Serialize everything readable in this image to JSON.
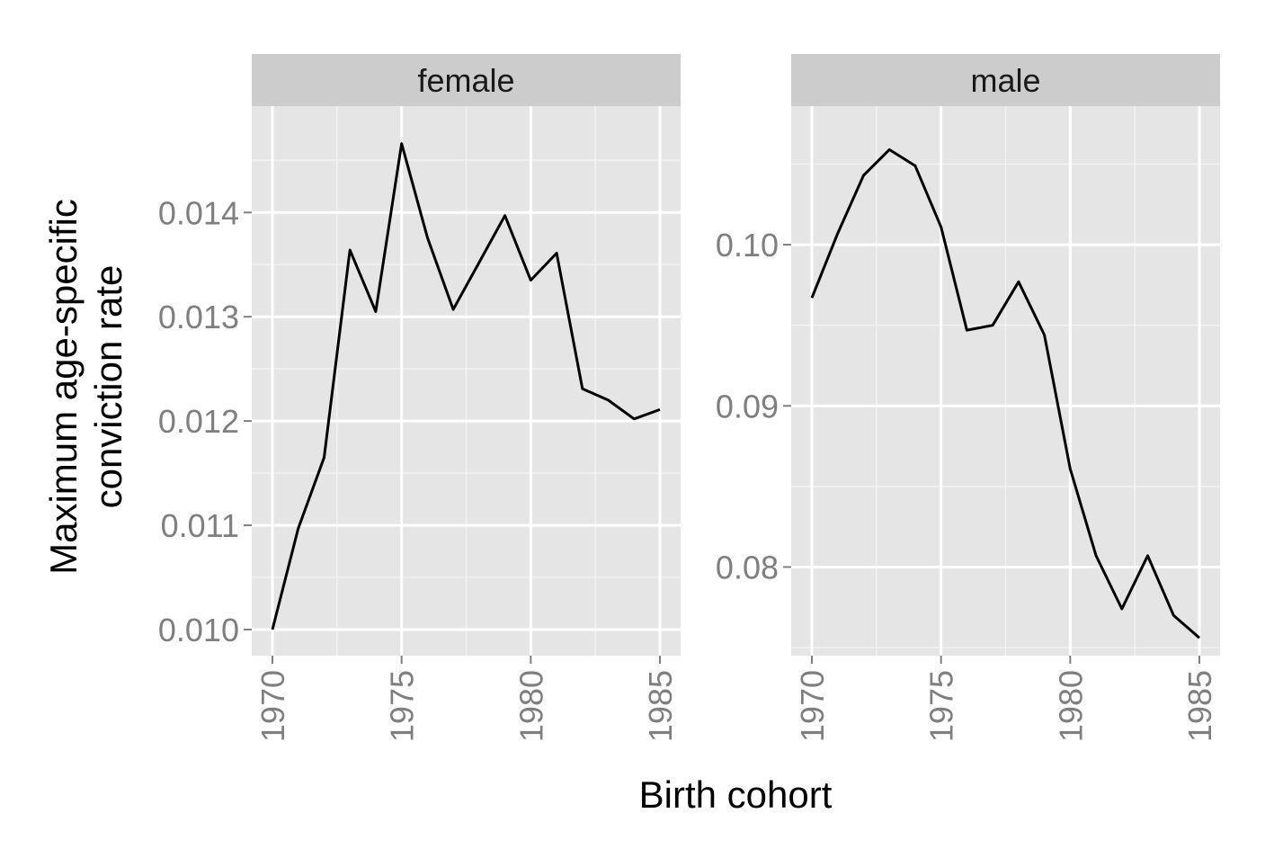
{
  "chart_data": {
    "type": "line",
    "facet_layout": "two panels side by side, independent y scales",
    "xlabel": "Birth cohort",
    "ylabel_line1": "Maximum age-specific",
    "ylabel_line2": "conviction rate",
    "grid": true,
    "colors": {
      "panel_background": "#e5e5e5",
      "strip_background": "#cccccc",
      "grid_line": "#ffffff",
      "series_line": "#000000",
      "tick_text": "#7f7f7f"
    },
    "x_ticks": [
      1970,
      1975,
      1980,
      1985
    ],
    "panels": [
      {
        "name": "female",
        "ylim": [
          0.00975,
          0.01502
        ],
        "y_ticks": [
          0.01,
          0.011,
          0.012,
          0.013,
          0.014
        ],
        "y_tick_labels": [
          "0.010",
          "0.011",
          "0.012",
          "0.013",
          "0.014"
        ],
        "x": [
          1970,
          1971,
          1972,
          1973,
          1974,
          1975,
          1976,
          1977,
          1978,
          1979,
          1980,
          1981,
          1982,
          1983,
          1984,
          1985
        ],
        "y": [
          0.01,
          0.01097,
          0.01165,
          0.01364,
          0.01305,
          0.01466,
          0.01376,
          0.01307,
          0.01352,
          0.01397,
          0.01335,
          0.01361,
          0.01231,
          0.0122,
          0.01202,
          0.01211
        ]
      },
      {
        "name": "male",
        "ylim": [
          0.0745,
          0.1086
        ],
        "y_ticks": [
          0.08,
          0.09,
          0.1
        ],
        "y_tick_labels": [
          "0.08",
          "0.09",
          "0.10"
        ],
        "x": [
          1970,
          1971,
          1972,
          1973,
          1974,
          1975,
          1976,
          1977,
          1978,
          1979,
          1980,
          1981,
          1982,
          1983,
          1984,
          1985
        ],
        "y": [
          0.0967,
          0.1007,
          0.1043,
          0.1059,
          0.1049,
          0.1011,
          0.0947,
          0.095,
          0.0977,
          0.0944,
          0.0861,
          0.0807,
          0.0774,
          0.0807,
          0.077,
          0.0756
        ]
      }
    ]
  }
}
